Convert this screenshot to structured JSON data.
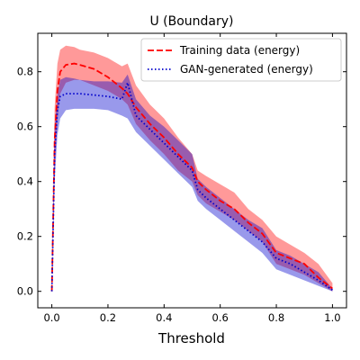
{
  "chart_data": {
    "type": "line",
    "title": "U (Boundary)",
    "xlabel": "Threshold",
    "ylabel": "",
    "xlim": [
      -0.05,
      1.05
    ],
    "ylim": [
      -0.06,
      0.94
    ],
    "xticks": [
      0.0,
      0.2,
      0.4,
      0.6,
      0.8,
      1.0
    ],
    "xtick_labels": [
      "0.0",
      "0.2",
      "0.4",
      "0.6",
      "0.8",
      "1.0"
    ],
    "yticks": [
      0.0,
      0.2,
      0.4,
      0.6,
      0.8
    ],
    "ytick_labels": [
      "0.0",
      "0.2",
      "0.4",
      "0.6",
      "0.8"
    ],
    "grid": false,
    "legend_position": "top-right",
    "x": [
      0,
      0.01,
      0.02,
      0.03,
      0.05,
      0.08,
      0.1,
      0.15,
      0.2,
      0.25,
      0.27,
      0.3,
      0.35,
      0.4,
      0.45,
      0.5,
      0.52,
      0.55,
      0.6,
      0.65,
      0.7,
      0.75,
      0.8,
      0.85,
      0.9,
      0.95,
      1.0
    ],
    "series": [
      {
        "name": "Training data (energy)",
        "color": "#ff0000",
        "line_style": "dashed",
        "values": [
          0.0,
          0.55,
          0.73,
          0.8,
          0.825,
          0.83,
          0.825,
          0.81,
          0.78,
          0.74,
          0.72,
          0.67,
          0.61,
          0.56,
          0.5,
          0.45,
          0.4,
          0.37,
          0.33,
          0.3,
          0.25,
          0.21,
          0.14,
          0.12,
          0.1,
          0.05,
          0.01
        ],
        "lower": [
          0.0,
          0.45,
          0.62,
          0.72,
          0.76,
          0.77,
          0.77,
          0.75,
          0.73,
          0.7,
          0.68,
          0.61,
          0.55,
          0.5,
          0.44,
          0.4,
          0.35,
          0.32,
          0.29,
          0.26,
          0.22,
          0.18,
          0.1,
          0.08,
          0.06,
          0.03,
          0.0
        ],
        "upper": [
          0.0,
          0.67,
          0.83,
          0.88,
          0.895,
          0.89,
          0.88,
          0.87,
          0.85,
          0.82,
          0.83,
          0.75,
          0.68,
          0.63,
          0.56,
          0.5,
          0.44,
          0.42,
          0.39,
          0.36,
          0.3,
          0.26,
          0.2,
          0.17,
          0.14,
          0.1,
          0.03
        ]
      },
      {
        "name": "GAN-generated (energy)",
        "color": "#0000cc",
        "line_style": "dotted",
        "values": [
          0.0,
          0.5,
          0.66,
          0.71,
          0.72,
          0.72,
          0.72,
          0.715,
          0.71,
          0.7,
          0.76,
          0.64,
          0.59,
          0.54,
          0.49,
          0.44,
          0.37,
          0.34,
          0.3,
          0.26,
          0.22,
          0.18,
          0.12,
          0.1,
          0.07,
          0.04,
          0.005
        ],
        "lower": [
          0.0,
          0.4,
          0.57,
          0.63,
          0.66,
          0.665,
          0.665,
          0.665,
          0.66,
          0.64,
          0.63,
          0.58,
          0.53,
          0.48,
          0.43,
          0.38,
          0.33,
          0.3,
          0.26,
          0.22,
          0.18,
          0.14,
          0.08,
          0.06,
          0.04,
          0.02,
          0.0
        ],
        "upper": [
          0.0,
          0.6,
          0.72,
          0.77,
          0.78,
          0.775,
          0.77,
          0.765,
          0.765,
          0.76,
          0.79,
          0.7,
          0.64,
          0.6,
          0.55,
          0.5,
          0.41,
          0.38,
          0.34,
          0.3,
          0.26,
          0.23,
          0.15,
          0.13,
          0.1,
          0.07,
          0.01
        ]
      }
    ]
  }
}
